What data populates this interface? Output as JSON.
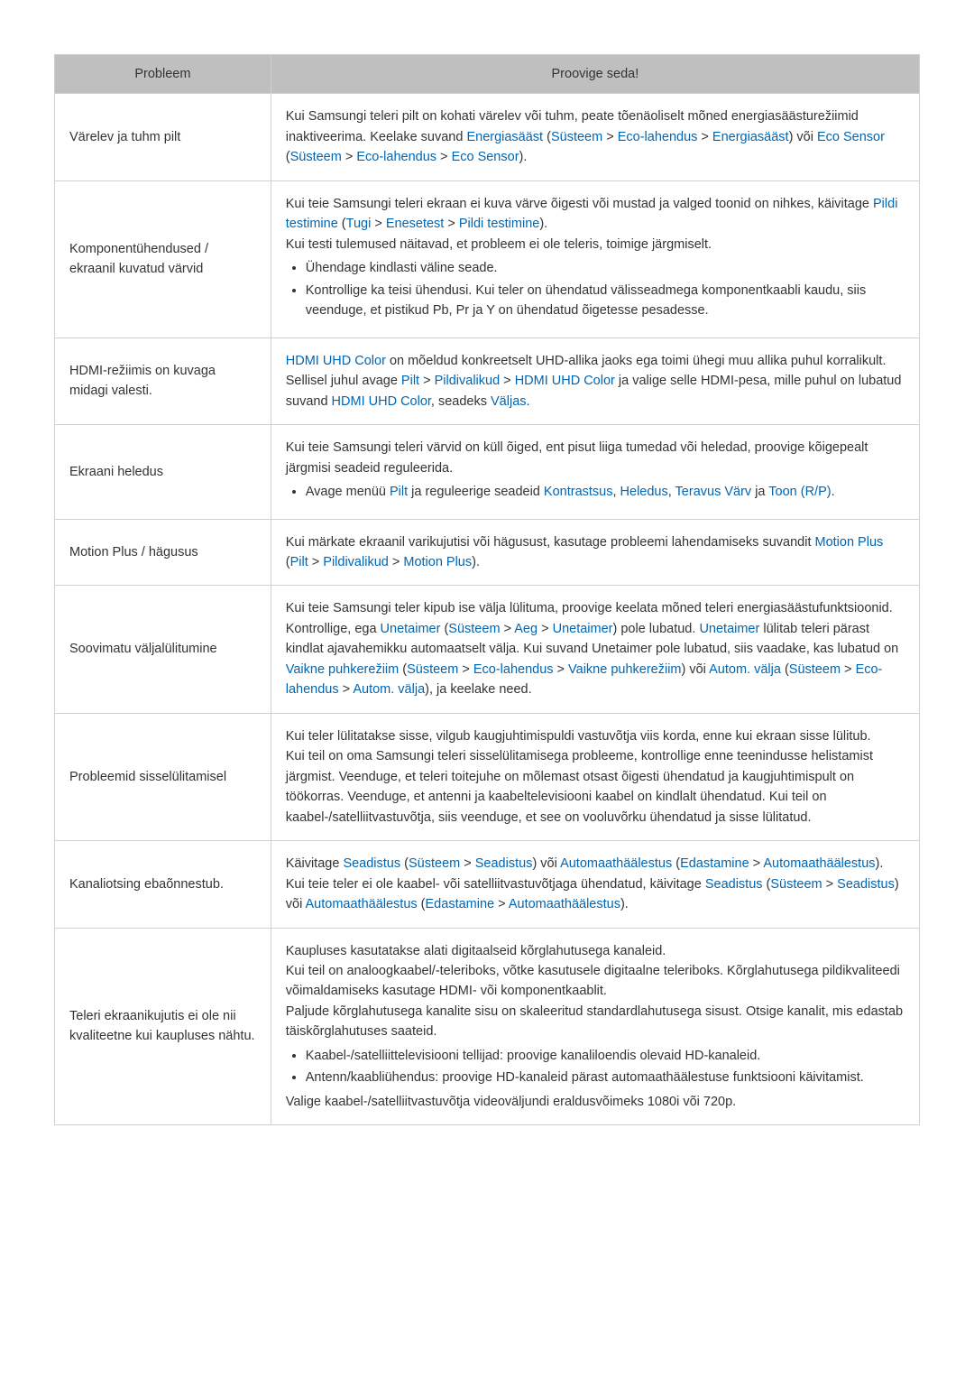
{
  "colors": {
    "link": "#0066b3",
    "header_bg": "#bfbfbf",
    "border": "#d0d0d0",
    "text": "#333333"
  },
  "headers": {
    "problem": "Probleem",
    "solution": "Proovige seda!"
  },
  "rows": [
    {
      "problem": "Värelev ja tuhm pilt",
      "solution_html": "Kui Samsungi teleri pilt on kohati värelev või tuhm, peate tõenäoliselt mõned energiasäästurežiimid inaktiveerima. Keelake suvand <span class=\"link\">Energiasääst</span> (<span class=\"link\">Süsteem</span> > <span class=\"link\">Eco-lahendus</span> > <span class=\"link\">Energiasääst</span>) või <span class=\"link\">Eco Sensor</span> (<span class=\"link\">Süsteem</span> > <span class=\"link\">Eco-lahendus</span> > <span class=\"link\">Eco Sensor</span>)."
    },
    {
      "problem": "Komponentühendused / ekraanil kuvatud värvid",
      "solution_html": "Kui teie Samsungi teleri ekraan ei kuva värve õigesti või mustad ja valged toonid on nihkes, käivitage <span class=\"link\">Pildi testimine</span> (<span class=\"link\">Tugi</span> > <span class=\"link\">Enesetest</span> > <span class=\"link\">Pildi testimine</span>).<br>Kui testi tulemused näitavad, et probleem ei ole teleris, toimige järgmiselt.<ul><li>Ühendage kindlasti väline seade.</li><li>Kontrollige ka teisi ühendusi. Kui teler on ühendatud välisseadmega komponentkaabli kaudu, siis veenduge, et pistikud Pb, Pr ja Y on ühendatud õigetesse pesadesse.</li></ul>"
    },
    {
      "problem": "HDMI-režiimis on kuvaga midagi valesti.",
      "solution_html": "<span class=\"link\">HDMI UHD Color</span> on mõeldud konkreetselt UHD-allika jaoks ega toimi ühegi muu allika puhul korralikult. Sellisel juhul avage <span class=\"link\">Pilt</span> > <span class=\"link\">Pildivalikud</span> > <span class=\"link\">HDMI UHD Color</span> ja valige selle HDMI-pesa, mille puhul on lubatud suvand <span class=\"link\">HDMI UHD Color</span>, seadeks <span class=\"link\">Väljas</span>."
    },
    {
      "problem": "Ekraani heledus",
      "solution_html": "Kui teie Samsungi teleri värvid on küll õiged, ent pisut liiga tumedad või heledad, proovige kõigepealt järgmisi seadeid reguleerida.<ul><li>Avage menüü <span class=\"link\">Pilt</span> ja reguleerige seadeid <span class=\"link\">Kontrastsus</span>, <span class=\"link\">Heledus</span>, <span class=\"link\">Teravus Värv</span> ja <span class=\"link\">Toon (R/P)</span>.</li></ul>"
    },
    {
      "problem": "Motion Plus / hägusus",
      "solution_html": "Kui märkate ekraanil varikujutisi või hägusust, kasutage probleemi lahendamiseks suvandit <span class=\"link\">Motion Plus</span> (<span class=\"link\">Pilt</span> > <span class=\"link\">Pildivalikud</span> > <span class=\"link\">Motion Plus</span>)."
    },
    {
      "problem": "Soovimatu väljalülitumine",
      "solution_html": "Kui teie Samsungi teler kipub ise välja lülituma, proovige keelata mõned teleri energiasäästufunktsioonid. Kontrollige, ega <span class=\"link\">Unetaimer</span> (<span class=\"link\">Süsteem</span> > <span class=\"link\">Aeg</span> > <span class=\"link\">Unetaimer</span>) pole lubatud. <span class=\"link\">Unetaimer</span> lülitab teleri pärast kindlat ajavahemikku automaatselt välja. Kui suvand Unetaimer pole lubatud, siis vaadake, kas lubatud on <span class=\"link\">Vaikne puhkerežiim</span> (<span class=\"link\">Süsteem</span> > <span class=\"link\">Eco-lahendus</span> > <span class=\"link\">Vaikne puhkerežiim</span>) või <span class=\"link\">Autom. välja</span> (<span class=\"link\">Süsteem</span> > <span class=\"link\">Eco-lahendus</span> > <span class=\"link\">Autom. välja</span>), ja keelake need."
    },
    {
      "problem": "Probleemid sisselülitamisel",
      "solution_html": "Kui teler lülitatakse sisse, vilgub kaugjuhtimispuldi vastuvõtja viis korda, enne kui ekraan sisse lülitub.<br>Kui teil on oma Samsungi teleri sisselülitamisega probleeme, kontrollige enne teenindusse helistamist järgmist. Veenduge, et teleri toitejuhe on mõlemast otsast õigesti ühendatud ja kaugjuhtimispult on töökorras. Veenduge, et antenni ja kaabeltelevisiooni kaabel on kindlalt ühendatud. Kui teil on kaabel-/satelliitvastuvõtja, siis veenduge, et see on vooluvõrku ühendatud ja sisse lülitatud."
    },
    {
      "problem": "Kanaliotsing ebaõnnestub.",
      "solution_html": "Käivitage <span class=\"link\">Seadistus</span> (<span class=\"link\">Süsteem</span> > <span class=\"link\">Seadistus</span>) või <span class=\"link\">Automaathäälestus</span> (<span class=\"link\">Edastamine</span> > <span class=\"link\">Automaathäälestus</span>).<br>Kui teie teler ei ole kaabel- või satelliitvastuvõtjaga ühendatud, käivitage <span class=\"link\">Seadistus</span> (<span class=\"link\">Süsteem</span> > <span class=\"link\">Seadistus</span>) või <span class=\"link\">Automaathäälestus</span> (<span class=\"link\">Edastamine</span> > <span class=\"link\">Automaathäälestus</span>)."
    },
    {
      "problem": "Teleri ekraanikujutis ei ole nii kvaliteetne kui kaupluses nähtu.",
      "solution_html": "Kaupluses kasutatakse alati digitaalseid kõrglahutusega kanaleid.<br>Kui teil on analoogkaabel/-teleriboks, võtke kasutusele digitaalne teleriboks. Kõrglahutusega pildikvaliteedi võimaldamiseks kasutage HDMI- või komponentkaablit.<br>Paljude kõrglahutusega kanalite sisu on skaleeritud standardlahutusega sisust. Otsige kanalit, mis edastab täiskõrglahutuses saateid.<ul><li>Kaabel-/satelliittelevisiooni tellijad: proovige kanaliloendis olevaid HD-kanaleid.</li><li>Antenn/kaabliühendus: proovige HD-kanaleid pärast automaathäälestuse funktsiooni käivitamist.</li></ul>Valige kaabel-/satelliitvastuvõtja videoväljundi eraldusvõimeks 1080i või 720p."
    }
  ]
}
